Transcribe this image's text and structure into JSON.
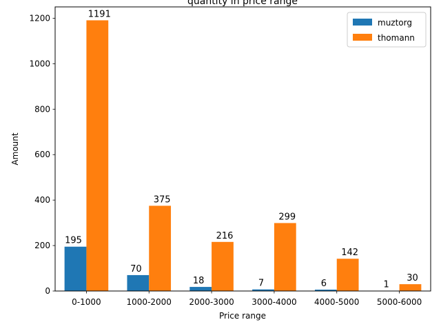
{
  "chart_data": {
    "type": "bar",
    "title": "quantity in price range",
    "xlabel": "Price range",
    "ylabel": "Amount",
    "categories": [
      "0-1000",
      "1000-2000",
      "2000-3000",
      "3000-4000",
      "4000-5000",
      "5000-6000"
    ],
    "series": [
      {
        "name": "muztorg",
        "color": "#1f77b4",
        "values": [
          195,
          70,
          18,
          7,
          6,
          1
        ]
      },
      {
        "name": "thomann",
        "color": "#ff7f0e",
        "values": [
          1191,
          375,
          216,
          299,
          142,
          30
        ]
      }
    ],
    "ylim": [
      0,
      1250
    ],
    "yticks": [
      0,
      200,
      400,
      600,
      800,
      1000,
      1200
    ],
    "grid": false,
    "legend": "top-right"
  }
}
